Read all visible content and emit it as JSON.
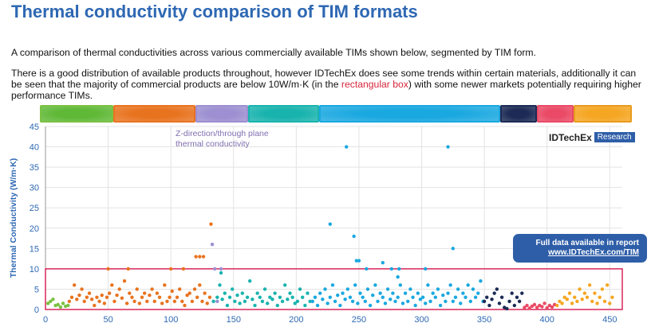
{
  "header": {
    "title": "Thermal conductivity comparison of TIM formats"
  },
  "description": {
    "p1": "A comparison of thermal conductivities across various commercially available TIMs shown below, segmented by TIM form.",
    "p2_a": "There is a good distribution of available products throughout, however IDTechEx does see some trends within certain materials, additionally it can be seen that the majority of commercial products are below 10W/m·K (in the ",
    "p2_highlight": "rectangular box",
    "p2_b": ") with some newer markets potentially requiring higher performance TIMs."
  },
  "segment_bar": {
    "segments": [
      {
        "color": "#5fb836",
        "border": "#7ac142",
        "start": 0,
        "end": 56
      },
      {
        "color": "#e8731f",
        "border": "#e8731f",
        "start": 56,
        "end": 118
      },
      {
        "color": "#9d8fd1",
        "border": "#9d8fd1",
        "start": 118,
        "end": 158
      },
      {
        "color": "#19b3ae",
        "border": "#19b3ae",
        "start": 158,
        "end": 212
      },
      {
        "color": "#1aa8e0",
        "border": "#1aa8e0",
        "start": 212,
        "end": 350
      },
      {
        "color": "#1c2a55",
        "border": "#1c2a55",
        "start": 350,
        "end": 378
      },
      {
        "color": "#ea4a66",
        "border": "#ea4a66",
        "start": 378,
        "end": 406
      },
      {
        "color": "#f5a623",
        "border": "#e89b1c",
        "start": 406,
        "end": 450
      }
    ]
  },
  "annotation": {
    "line1": "Z-direction/through plane",
    "line2": "thermal conductivity"
  },
  "logo": {
    "brand": "IDTechEx",
    "tag": "Research"
  },
  "callout": {
    "line1": "Full data available in report",
    "link": "www.IDTechEx.com/TIM"
  },
  "chart_data": {
    "type": "scatter",
    "ylabel": "Thermal Conductivity (W/m·K)",
    "xlim": [
      0,
      460
    ],
    "ylim": [
      0,
      45
    ],
    "x_ticks": [
      0,
      50,
      100,
      150,
      200,
      250,
      300,
      350,
      400,
      450
    ],
    "y_ticks": [
      0,
      5,
      10,
      15,
      20,
      25,
      30,
      35,
      40,
      45
    ],
    "grid": true,
    "highlight_box": {
      "x_range": [
        0,
        460
      ],
      "y_range": [
        0,
        10
      ],
      "color": "#d7265a"
    },
    "series": [
      {
        "color": "#7ac142",
        "x": [
          2,
          4,
          6,
          8,
          10,
          12,
          14,
          16,
          18
        ],
        "y": [
          1.5,
          2,
          2.5,
          1,
          1.2,
          0.6,
          1.5,
          0.8,
          1
        ]
      },
      {
        "color": "#e8731f",
        "x": [
          19,
          21,
          23,
          25,
          27,
          29,
          31,
          33,
          35,
          37,
          39,
          41,
          43,
          45,
          47,
          49,
          51,
          53,
          55,
          57,
          59,
          61,
          63,
          65,
          67,
          69,
          71,
          73,
          75,
          77,
          79,
          81,
          83,
          85,
          87,
          89,
          91,
          93,
          95,
          97,
          99,
          101,
          103,
          105,
          107,
          109,
          111,
          113,
          115,
          117,
          119,
          121,
          123,
          125,
          127,
          129,
          131,
          132,
          50,
          66,
          100,
          110,
          120,
          123,
          126
        ],
        "y": [
          2,
          3,
          6,
          2.5,
          3.5,
          5,
          2,
          3,
          4,
          2.5,
          1,
          3,
          2,
          3.5,
          1.5,
          3,
          4,
          6,
          2,
          3.5,
          5,
          2.8,
          7,
          1.5,
          4,
          3,
          2,
          5,
          1.5,
          3,
          4,
          2,
          3.5,
          5,
          2,
          4,
          3,
          1.5,
          6,
          2,
          3,
          4.5,
          2,
          3,
          5,
          2,
          1,
          3.5,
          4,
          2,
          5,
          3,
          6,
          2,
          4,
          1.5,
          3,
          21,
          10,
          10,
          10,
          10,
          13,
          13,
          13
        ]
      },
      {
        "color": "#9d8fd1",
        "x": [
          133,
          135,
          137,
          140
        ],
        "y": [
          16,
          10,
          2,
          10
        ]
      },
      {
        "color": "#19b3ae",
        "x": [
          134,
          137,
          139,
          141,
          143,
          145,
          147,
          149,
          151,
          153,
          155,
          157,
          159,
          161,
          163,
          165,
          167,
          169,
          171,
          173,
          175,
          177,
          179,
          181,
          183,
          185,
          187,
          189,
          191,
          193,
          195,
          197,
          199,
          201,
          203,
          205,
          207,
          209,
          211,
          140
        ],
        "y": [
          2,
          3,
          6,
          2.5,
          4,
          1,
          3,
          5,
          2,
          3.5,
          1.5,
          4,
          2,
          3,
          7,
          2.5,
          1,
          4,
          3,
          2,
          5,
          1.5,
          3,
          2.5,
          4,
          1,
          3,
          2,
          6,
          2.5,
          4,
          3,
          1.5,
          2,
          5,
          3,
          1,
          4,
          2,
          9
        ]
      },
      {
        "color": "#1aa8e0",
        "x": [
          213,
          215,
          217,
          219,
          221,
          223,
          225,
          227,
          229,
          231,
          233,
          235,
          237,
          239,
          241,
          243,
          245,
          247,
          249,
          251,
          253,
          255,
          257,
          259,
          261,
          263,
          265,
          267,
          269,
          271,
          273,
          275,
          277,
          279,
          281,
          283,
          285,
          287,
          289,
          291,
          293,
          295,
          297,
          299,
          301,
          303,
          305,
          307,
          309,
          311,
          313,
          315,
          317,
          319,
          321,
          323,
          325,
          327,
          329,
          331,
          333,
          335,
          337,
          339,
          341,
          343,
          345,
          347,
          349,
          227,
          240,
          246,
          248,
          250,
          256,
          269,
          276,
          281,
          282,
          303,
          321,
          325
        ],
        "y": [
          2,
          3,
          1,
          4,
          2.5,
          5,
          1.5,
          3,
          6,
          2,
          3.5,
          1,
          4,
          2.5,
          5,
          3,
          2,
          6,
          1.5,
          4,
          3,
          2,
          5,
          1,
          3.5,
          6,
          2,
          4,
          3,
          1.5,
          5,
          2.5,
          4,
          2,
          3,
          6,
          1.5,
          4,
          2,
          5,
          3,
          1,
          4,
          2.5,
          3,
          1.5,
          6,
          2,
          4,
          3,
          5,
          1,
          3.5,
          2,
          4,
          6,
          2,
          3,
          5,
          1.5,
          4,
          3,
          6,
          2,
          5,
          3,
          4,
          7,
          2,
          21,
          40,
          18,
          12,
          12,
          10,
          11.5,
          10,
          8,
          10,
          10,
          40,
          15
        ]
      },
      {
        "color": "#1c2a55",
        "x": [
          350,
          352,
          354,
          356,
          358,
          360,
          362,
          364,
          366,
          368,
          370,
          372,
          374,
          376,
          378,
          380
        ],
        "y": [
          2,
          3,
          1,
          2.5,
          4,
          5,
          1.5,
          3,
          0.5,
          0.2,
          2,
          4,
          1,
          3,
          2,
          4
        ]
      },
      {
        "color": "#ea4a66",
        "x": [
          382,
          384,
          386,
          388,
          390,
          392,
          394,
          396,
          398,
          400,
          402,
          404,
          406
        ],
        "y": [
          0.5,
          1,
          0.3,
          0.8,
          1.2,
          0.5,
          1,
          0.7,
          1.5,
          0.4,
          1,
          0.6,
          1.2
        ]
      },
      {
        "color": "#f5a623",
        "x": [
          408,
          410,
          412,
          414,
          416,
          418,
          420,
          422,
          424,
          426,
          428,
          430,
          432,
          434,
          436,
          438,
          440,
          442,
          444,
          446,
          448,
          450,
          452
        ],
        "y": [
          1,
          2,
          1.5,
          3,
          2.5,
          4,
          1.5,
          3,
          2,
          5,
          2.5,
          4,
          3,
          6,
          2,
          4,
          1.5,
          3,
          5,
          2,
          6,
          1.5,
          3
        ]
      }
    ]
  }
}
